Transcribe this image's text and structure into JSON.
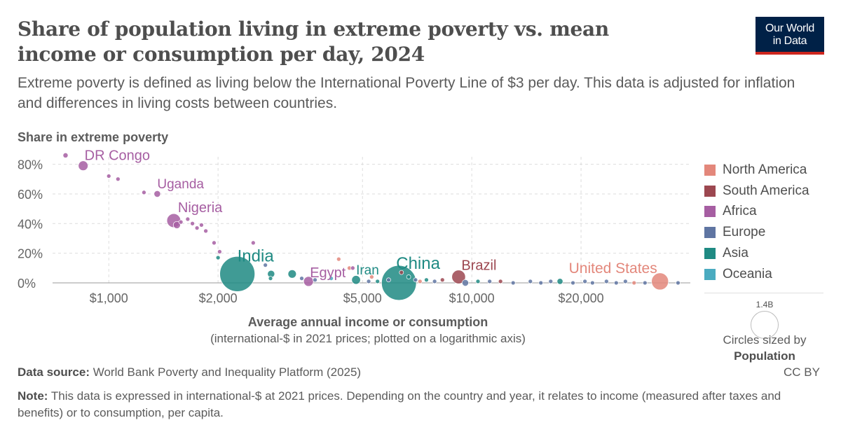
{
  "header": {
    "title": "Share of population living in extreme poverty vs. mean income or consumption per day, 2024",
    "subtitle": "Extreme poverty is defined as living below the International Poverty Line of $3 per day. This data is adjusted for inflation and differences in living costs between countries."
  },
  "logo": {
    "line1": "Our World",
    "line2": "in Data"
  },
  "chart_data": {
    "type": "scatter",
    "ylabel": "Share in extreme poverty",
    "xlabel": "Average annual income or consumption",
    "xlabel_sub": "(international-$ in 2021 prices; plotted on a logarithmic axis)",
    "x_scale": "log",
    "xlim": [
      700,
      40000
    ],
    "ylim": [
      0,
      85
    ],
    "x_ticks": [
      1000,
      2000,
      5000,
      10000,
      20000
    ],
    "x_tick_labels": [
      "$1,000",
      "$2,000",
      "$5,000",
      "$10,000",
      "$20,000"
    ],
    "y_ticks": [
      0,
      20,
      40,
      60,
      80
    ],
    "y_tick_labels": [
      "0%",
      "20%",
      "40%",
      "60%",
      "80%"
    ],
    "grid": true,
    "legend_position": "right",
    "regions": [
      {
        "name": "North America",
        "color": "#e3877b"
      },
      {
        "name": "South America",
        "color": "#9c4750"
      },
      {
        "name": "Africa",
        "color": "#a65ea2"
      },
      {
        "name": "Europe",
        "color": "#5f75a2"
      },
      {
        "name": "Asia",
        "color": "#1f8a83"
      },
      {
        "name": "Oceania",
        "color": "#4aabc0"
      }
    ],
    "points": [
      {
        "x": 760,
        "y": 86,
        "region": "Africa",
        "pop": 30,
        "label": ""
      },
      {
        "x": 850,
        "y": 79,
        "region": "Africa",
        "pop": 109,
        "label": "DR Congo"
      },
      {
        "x": 1000,
        "y": 72,
        "region": "Africa",
        "pop": 8,
        "label": ""
      },
      {
        "x": 1060,
        "y": 70,
        "region": "Africa",
        "pop": 6,
        "label": ""
      },
      {
        "x": 1250,
        "y": 61,
        "region": "Africa",
        "pop": 12,
        "label": ""
      },
      {
        "x": 1360,
        "y": 60,
        "region": "Africa",
        "pop": 49,
        "label": "Uganda"
      },
      {
        "x": 1510,
        "y": 42,
        "region": "Africa",
        "pop": 223,
        "label": "Nigeria"
      },
      {
        "x": 1540,
        "y": 39,
        "region": "Africa",
        "pop": 60,
        "label": ""
      },
      {
        "x": 1580,
        "y": 41,
        "region": "Africa",
        "pop": 20,
        "label": ""
      },
      {
        "x": 1650,
        "y": 43,
        "region": "Africa",
        "pop": 10,
        "label": ""
      },
      {
        "x": 1700,
        "y": 40,
        "region": "Africa",
        "pop": 8,
        "label": ""
      },
      {
        "x": 1750,
        "y": 37,
        "region": "Africa",
        "pop": 9,
        "label": ""
      },
      {
        "x": 1800,
        "y": 39,
        "region": "Africa",
        "pop": 10,
        "label": ""
      },
      {
        "x": 1850,
        "y": 35,
        "region": "Africa",
        "pop": 6,
        "label": ""
      },
      {
        "x": 1950,
        "y": 27,
        "region": "Africa",
        "pop": 5,
        "label": ""
      },
      {
        "x": 2000,
        "y": 17,
        "region": "Asia",
        "pop": 5,
        "label": ""
      },
      {
        "x": 2020,
        "y": 21,
        "region": "Africa",
        "pop": 5,
        "label": ""
      },
      {
        "x": 2260,
        "y": 6,
        "region": "Asia",
        "pop": 1430,
        "label": "India"
      },
      {
        "x": 2500,
        "y": 27,
        "region": "Africa",
        "pop": 5,
        "label": ""
      },
      {
        "x": 2700,
        "y": 12,
        "region": "Europe",
        "pop": 12,
        "label": ""
      },
      {
        "x": 2800,
        "y": 6,
        "region": "Asia",
        "pop": 60,
        "label": ""
      },
      {
        "x": 2790,
        "y": 3,
        "region": "Asia",
        "pop": 10,
        "label": ""
      },
      {
        "x": 3200,
        "y": 6,
        "region": "Asia",
        "pop": 80,
        "label": ""
      },
      {
        "x": 3400,
        "y": 3,
        "region": "Europe",
        "pop": 6,
        "label": ""
      },
      {
        "x": 3550,
        "y": 1,
        "region": "Africa",
        "pop": 112,
        "label": "Egypt"
      },
      {
        "x": 3700,
        "y": 2,
        "region": "Europe",
        "pop": 4,
        "label": ""
      },
      {
        "x": 4100,
        "y": 3,
        "region": "Oceania",
        "pop": 3,
        "label": ""
      },
      {
        "x": 4300,
        "y": 16,
        "region": "North America",
        "pop": 5,
        "label": ""
      },
      {
        "x": 4600,
        "y": 10,
        "region": "North America",
        "pop": 6,
        "label": ""
      },
      {
        "x": 4700,
        "y": 10,
        "region": "Africa",
        "pop": 6,
        "label": ""
      },
      {
        "x": 4800,
        "y": 2,
        "region": "Asia",
        "pop": 89,
        "label": "Iran"
      },
      {
        "x": 5200,
        "y": 1,
        "region": "Europe",
        "pop": 5,
        "label": ""
      },
      {
        "x": 5300,
        "y": 4,
        "region": "North America",
        "pop": 6,
        "label": ""
      },
      {
        "x": 5500,
        "y": 1,
        "region": "Asia",
        "pop": 6,
        "label": ""
      },
      {
        "x": 5900,
        "y": 2,
        "region": "Europe",
        "pop": 5,
        "label": ""
      },
      {
        "x": 6300,
        "y": 0,
        "region": "Asia",
        "pop": 1410,
        "label": "China"
      },
      {
        "x": 6400,
        "y": 7,
        "region": "South America",
        "pop": 6,
        "label": ""
      },
      {
        "x": 6700,
        "y": 4,
        "region": "Asia",
        "pop": 12,
        "label": ""
      },
      {
        "x": 7000,
        "y": 2,
        "region": "Europe",
        "pop": 8,
        "label": ""
      },
      {
        "x": 7200,
        "y": 1,
        "region": "North America",
        "pop": 5,
        "label": ""
      },
      {
        "x": 7500,
        "y": 2,
        "region": "Asia",
        "pop": 6,
        "label": ""
      },
      {
        "x": 7900,
        "y": 1,
        "region": "Europe",
        "pop": 5,
        "label": ""
      },
      {
        "x": 8300,
        "y": 2,
        "region": "South America",
        "pop": 6,
        "label": ""
      },
      {
        "x": 9200,
        "y": 4,
        "region": "South America",
        "pop": 216,
        "label": "Brazil"
      },
      {
        "x": 9600,
        "y": 0,
        "region": "Europe",
        "pop": 50,
        "label": ""
      },
      {
        "x": 10400,
        "y": 1,
        "region": "Asia",
        "pop": 6,
        "label": ""
      },
      {
        "x": 11200,
        "y": 1,
        "region": "Europe",
        "pop": 6,
        "label": ""
      },
      {
        "x": 12000,
        "y": 1,
        "region": "South America",
        "pop": 5,
        "label": ""
      },
      {
        "x": 13000,
        "y": 0,
        "region": "Europe",
        "pop": 5,
        "label": ""
      },
      {
        "x": 14500,
        "y": 1,
        "region": "Europe",
        "pop": 6,
        "label": ""
      },
      {
        "x": 15500,
        "y": 0,
        "region": "Europe",
        "pop": 6,
        "label": ""
      },
      {
        "x": 16500,
        "y": 1,
        "region": "Europe",
        "pop": 5,
        "label": ""
      },
      {
        "x": 17500,
        "y": 1,
        "region": "Asia",
        "pop": 40,
        "label": ""
      },
      {
        "x": 19000,
        "y": 0,
        "region": "Europe",
        "pop": 5,
        "label": ""
      },
      {
        "x": 20500,
        "y": 1,
        "region": "Europe",
        "pop": 6,
        "label": ""
      },
      {
        "x": 21500,
        "y": 0,
        "region": "Europe",
        "pop": 5,
        "label": ""
      },
      {
        "x": 23500,
        "y": 1,
        "region": "Europe",
        "pop": 6,
        "label": ""
      },
      {
        "x": 25000,
        "y": 0,
        "region": "Europe",
        "pop": 5,
        "label": ""
      },
      {
        "x": 26500,
        "y": 1,
        "region": "Europe",
        "pop": 6,
        "label": ""
      },
      {
        "x": 28000,
        "y": 0,
        "region": "North America",
        "pop": 5,
        "label": ""
      },
      {
        "x": 30000,
        "y": 0,
        "region": "Europe",
        "pop": 6,
        "label": ""
      },
      {
        "x": 33000,
        "y": 1,
        "region": "North America",
        "pop": 335,
        "label": "United States"
      },
      {
        "x": 37000,
        "y": 0,
        "region": "Europe",
        "pop": 5,
        "label": ""
      }
    ]
  },
  "size_legend": {
    "value": "1.4B",
    "caption": "Circles sized by",
    "caption_bold": "Population"
  },
  "footer": {
    "source_label": "Data source:",
    "source_text": "World Bank Poverty and Inequality Platform (2025)",
    "license": "CC BY",
    "note_label": "Note:",
    "note_text": "This data is expressed in international-$ at 2021 prices. Depending on the country and year, it relates to income (measured after taxes and benefits) or to consumption, per capita."
  }
}
